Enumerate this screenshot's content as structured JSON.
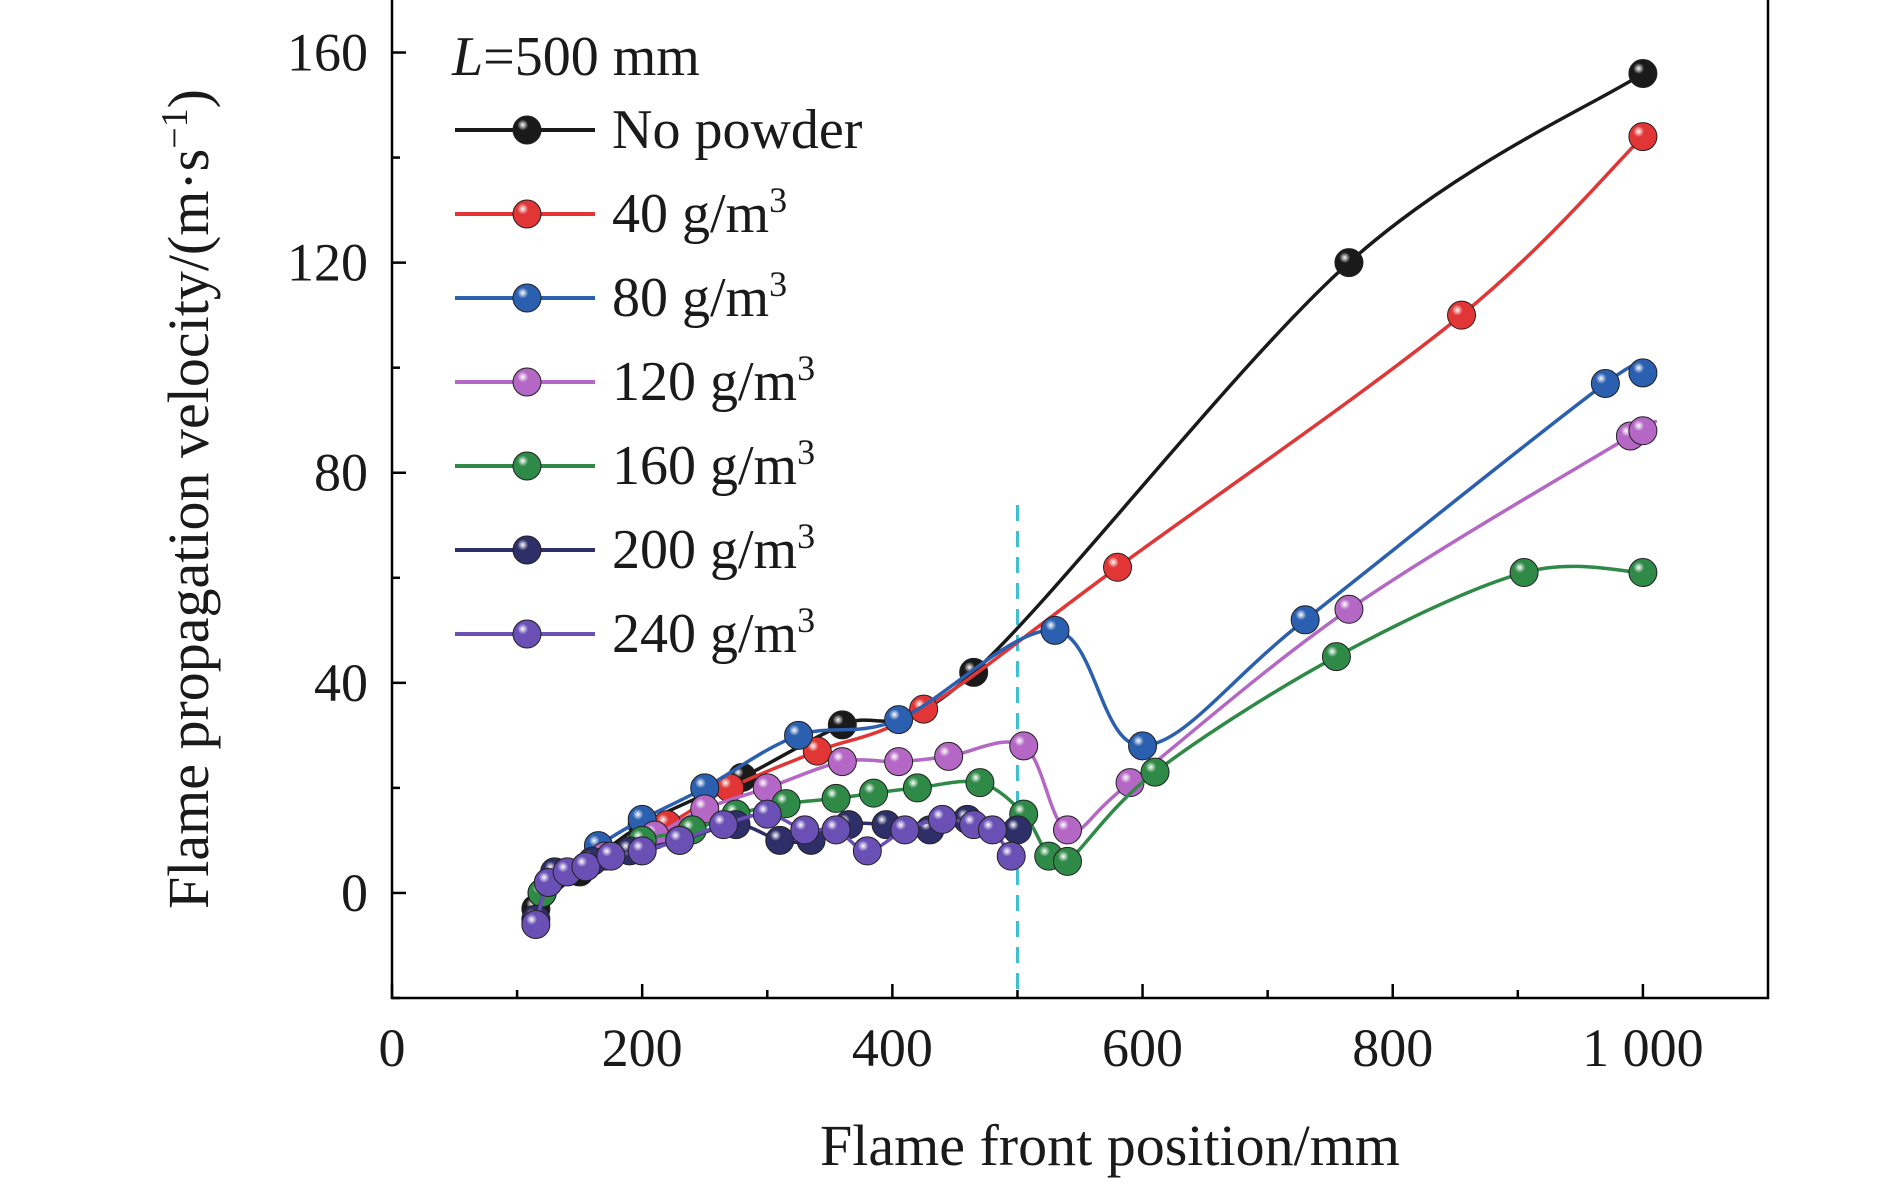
{
  "chart_data": {
    "type": "line",
    "annotation": {
      "italic": "L",
      "rest": "=500 mm"
    },
    "xlabel": "Flame front position/mm",
    "ylabel": "Flame propagation velocity/(m·s",
    "ylabel_sup": "−1",
    "ylabel_end": ")",
    "xlim": [
      0,
      1100
    ],
    "ylim": [
      -20,
      170
    ],
    "x_ticks": [
      0,
      200,
      400,
      600,
      800,
      1000
    ],
    "x_tick_labels": [
      "0",
      "200",
      "400",
      "600",
      "800",
      "1 000"
    ],
    "y_ticks": [
      0,
      40,
      80,
      120,
      160
    ],
    "y_tick_labels": [
      "0",
      "40",
      "80",
      "120",
      "160"
    ],
    "vline": {
      "x": 500,
      "color": "#3cc0d0"
    },
    "legend_position": "top-left",
    "series": [
      {
        "name": "No powder",
        "name_sup": "",
        "color": "#1a1a1a",
        "x": [
          115,
          150,
          200,
          280,
          360,
          465,
          765,
          1000
        ],
        "y": [
          -3,
          4,
          13,
          22,
          32,
          42,
          120,
          156
        ]
      },
      {
        "name": "40 g/m",
        "name_sup": "3",
        "color": "#e23636",
        "x": [
          120,
          160,
          220,
          270,
          340,
          425,
          580,
          855,
          1000
        ],
        "y": [
          0,
          6,
          13,
          20,
          27,
          35,
          62,
          110,
          144
        ]
      },
      {
        "name": "80 g/m",
        "name_sup": "3",
        "color": "#2b5fb0",
        "x": [
          125,
          165,
          200,
          250,
          325,
          405,
          530,
          600,
          730,
          970,
          1000
        ],
        "y": [
          2,
          9,
          14,
          20,
          30,
          33,
          50,
          28,
          52,
          97,
          99
        ]
      },
      {
        "name": "120 g/m",
        "name_sup": "3",
        "color": "#b467c4",
        "x": [
          120,
          170,
          210,
          250,
          300,
          360,
          405,
          445,
          505,
          540,
          590,
          765,
          990,
          1000
        ],
        "y": [
          0,
          7,
          11,
          16,
          20,
          25,
          25,
          26,
          28,
          12,
          21,
          54,
          87,
          88
        ]
      },
      {
        "name": "160 g/m",
        "name_sup": "3",
        "color": "#2f8a48",
        "x": [
          120,
          155,
          200,
          240,
          275,
          315,
          355,
          385,
          420,
          470,
          505,
          525,
          540,
          610,
          755,
          905,
          1000
        ],
        "y": [
          0,
          5,
          10,
          12,
          15,
          17,
          18,
          19,
          20,
          21,
          15,
          7,
          6,
          23,
          45,
          61,
          61
        ]
      },
      {
        "name": "200 g/m",
        "name_sup": "3",
        "color": "#2e2f68",
        "x": [
          115,
          130,
          160,
          190,
          230,
          275,
          310,
          335,
          365,
          395,
          430,
          460,
          500
        ],
        "y": [
          -5,
          4,
          6,
          8,
          10,
          13,
          10,
          10,
          13,
          13,
          12,
          14,
          12
        ]
      },
      {
        "name": "240 g/m",
        "name_sup": "3",
        "color": "#6a4fb5",
        "x": [
          115,
          125,
          140,
          155,
          175,
          200,
          230,
          265,
          300,
          330,
          355,
          380,
          410,
          440,
          465,
          480,
          495
        ],
        "y": [
          -6,
          2,
          4,
          5,
          7,
          8,
          10,
          13,
          15,
          12,
          12,
          8,
          12,
          14,
          13,
          12,
          7
        ]
      }
    ]
  }
}
